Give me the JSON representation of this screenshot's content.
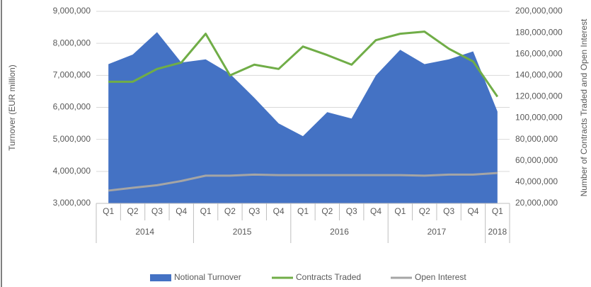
{
  "chart_data": {
    "type": "area_line",
    "y_label": "Turnover (EUR million)",
    "y2_label": "Number of Contracts Traded and Open Interest",
    "categories": [
      {
        "quarter": "Q1",
        "year": "2014"
      },
      {
        "quarter": "Q2"
      },
      {
        "quarter": "Q3"
      },
      {
        "quarter": "Q4"
      },
      {
        "quarter": "Q1",
        "year": "2015"
      },
      {
        "quarter": "Q2"
      },
      {
        "quarter": "Q3"
      },
      {
        "quarter": "Q4"
      },
      {
        "quarter": "Q1",
        "year": "2016"
      },
      {
        "quarter": "Q2"
      },
      {
        "quarter": "Q3"
      },
      {
        "quarter": "Q4"
      },
      {
        "quarter": "Q1",
        "year": "2017"
      },
      {
        "quarter": "Q2"
      },
      {
        "quarter": "Q3"
      },
      {
        "quarter": "Q4"
      },
      {
        "quarter": "Q1",
        "year": "2018"
      }
    ],
    "series": [
      {
        "name": "Notional Turnover",
        "kind": "area",
        "axis": "y",
        "color": "#4472c4",
        "values": [
          7350000,
          7650000,
          8350000,
          7400000,
          7500000,
          7050000,
          6300000,
          5500000,
          5100000,
          5850000,
          5650000,
          7000000,
          7800000,
          7350000,
          7500000,
          7750000,
          5870000
        ]
      },
      {
        "name": "Contracts Traded",
        "kind": "line",
        "axis": "y2",
        "color": "#70ad47",
        "values": [
          134000000,
          134000000,
          146000000,
          152000000,
          179000000,
          140000000,
          150000000,
          146000000,
          167000000,
          159000000,
          150000000,
          173000000,
          179000000,
          181000000,
          165000000,
          153000000,
          120000000
        ]
      },
      {
        "name": "Open Interest",
        "kind": "line",
        "axis": "y2",
        "color": "#a5a5a5",
        "values": [
          32000000,
          34600000,
          37000000,
          41000000,
          46000000,
          46000000,
          47000000,
          46500000,
          46500000,
          46500000,
          46500000,
          46500000,
          46500000,
          46000000,
          47000000,
          47000000,
          48500000
        ]
      }
    ],
    "ylim": [
      3000000,
      9000000
    ],
    "yticks": [
      {
        "value": 3000000,
        "label": "3,000,000"
      },
      {
        "value": 4000000,
        "label": "4,000,000"
      },
      {
        "value": 5000000,
        "label": "5,000,000"
      },
      {
        "value": 6000000,
        "label": "6,000,000"
      },
      {
        "value": 7000000,
        "label": "7,000,000"
      },
      {
        "value": 8000000,
        "label": "8,000,000"
      },
      {
        "value": 9000000,
        "label": "9,000,000"
      }
    ],
    "y2lim": [
      20000000,
      200000000
    ],
    "y2ticks": [
      {
        "value": 20000000,
        "label": "20,000,000"
      },
      {
        "value": 40000000,
        "label": "40,000,000"
      },
      {
        "value": 60000000,
        "label": "60,000,000"
      },
      {
        "value": 80000000,
        "label": "80,000,000"
      },
      {
        "value": 100000000,
        "label": "100,000,000"
      },
      {
        "value": 120000000,
        "label": "120,000,000"
      },
      {
        "value": 140000000,
        "label": "140,000,000"
      },
      {
        "value": 160000000,
        "label": "160,000,000"
      },
      {
        "value": 180000000,
        "label": "180,000,000"
      },
      {
        "value": 200000000,
        "label": "200,000,000"
      }
    ],
    "grid": true,
    "legend": "bottom"
  }
}
